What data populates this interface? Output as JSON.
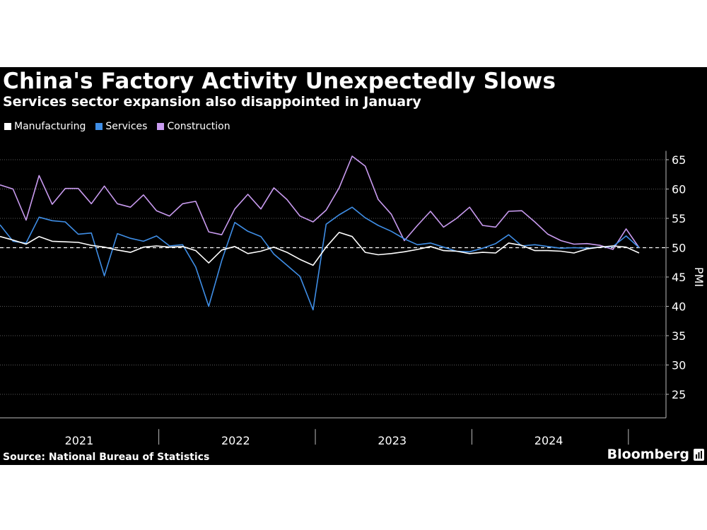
{
  "header": {
    "title": "China's Factory Activity Unexpectedly Slows",
    "subtitle": "Services sector expansion also disappointed in January"
  },
  "footer": {
    "source": "Source: National Bureau of Statistics",
    "brand": "Bloomberg"
  },
  "colors": {
    "background": "#000000",
    "manufacturing": "#ffffff",
    "services": "#3f8ee6",
    "construction": "#c99bf0",
    "grid": "#5a5a5a",
    "text": "#ffffff"
  },
  "chart_data": {
    "type": "line",
    "title": "China's Factory Activity Unexpectedly Slows",
    "subtitle": "Services sector expansion also disappointed in January",
    "xlabel": "",
    "ylabel": "PMI",
    "ylim": [
      20,
      68
    ],
    "yticks": [
      25,
      30,
      35,
      40,
      45,
      50,
      55,
      60,
      65
    ],
    "reference_line": 50,
    "x_period": "Monthly, Dec 2020 – Jan 2025",
    "year_labels": [
      "2021",
      "2022",
      "2023",
      "2024"
    ],
    "legend_position": "top-left",
    "series": [
      {
        "name": "Manufacturing",
        "color": "#ffffff",
        "values": [
          51.9,
          51.3,
          50.6,
          51.9,
          51.1,
          51.0,
          50.9,
          50.4,
          50.1,
          49.6,
          49.2,
          50.1,
          50.3,
          50.1,
          50.2,
          49.5,
          47.4,
          49.6,
          50.2,
          49.0,
          49.4,
          50.1,
          49.2,
          48.0,
          47.0,
          50.1,
          52.6,
          51.9,
          49.2,
          48.8,
          49.0,
          49.3,
          49.7,
          50.2,
          49.5,
          49.4,
          49.0,
          49.2,
          49.1,
          50.8,
          50.4,
          49.5,
          49.5,
          49.4,
          49.1,
          49.8,
          50.1,
          50.3,
          50.1,
          49.1
        ]
      },
      {
        "name": "Services",
        "color": "#3f8ee6",
        "values": [
          53.9,
          51.1,
          50.8,
          55.2,
          54.6,
          54.4,
          52.3,
          52.5,
          45.2,
          52.4,
          51.6,
          51.1,
          52.0,
          50.3,
          50.5,
          46.7,
          40.0,
          47.8,
          54.3,
          52.8,
          51.9,
          48.9,
          47.0,
          45.1,
          39.4,
          54.0,
          55.6,
          56.9,
          55.1,
          53.8,
          52.8,
          51.5,
          50.5,
          50.8,
          50.1,
          49.4,
          49.3,
          49.9,
          50.7,
          52.2,
          50.3,
          50.5,
          50.2,
          49.9,
          50.0,
          49.9,
          50.1,
          50.2,
          52.0,
          50.0
        ]
      },
      {
        "name": "Construction",
        "color": "#c99bf0",
        "values": [
          60.7,
          60.0,
          54.7,
          62.3,
          57.4,
          60.1,
          60.1,
          57.5,
          60.5,
          57.5,
          56.9,
          59.0,
          56.3,
          55.4,
          57.5,
          57.9,
          52.7,
          52.2,
          56.6,
          59.1,
          56.6,
          60.2,
          58.2,
          55.4,
          54.4,
          56.4,
          60.2,
          65.6,
          63.9,
          58.2,
          55.7,
          51.2,
          53.8,
          56.2,
          53.5,
          55.0,
          56.9,
          53.8,
          53.5,
          56.2,
          56.3,
          54.4,
          52.3,
          51.2,
          50.6,
          50.7,
          50.4,
          49.7,
          53.2,
          50.0
        ]
      }
    ]
  }
}
